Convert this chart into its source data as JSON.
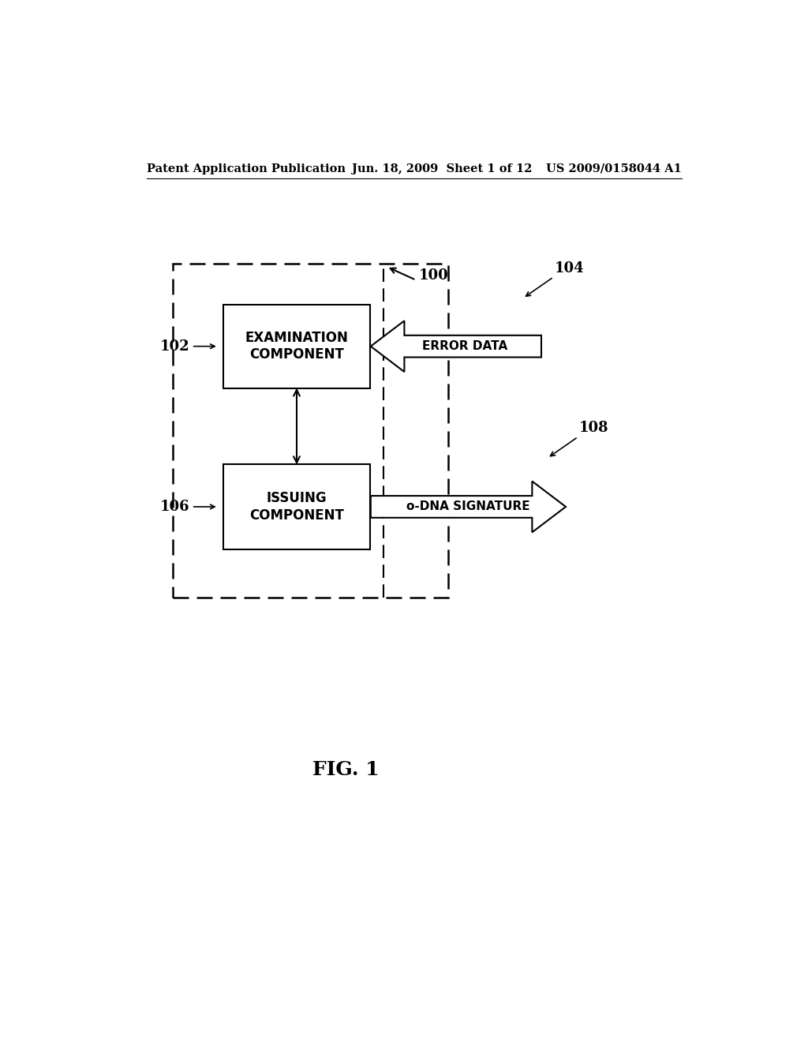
{
  "bg_color": "#ffffff",
  "header_left": "Patent Application Publication",
  "header_mid": "Jun. 18, 2009  Sheet 1 of 12",
  "header_right": "US 2009/0158044 A1",
  "fig_label": "FIG. 1",
  "label_100": "100",
  "label_102": "102",
  "label_104": "104",
  "label_106": "106",
  "label_108": "108",
  "exam_label1": "EXAMINATION",
  "exam_label2": "COMPONENT",
  "issue_label1": "ISSUING",
  "issue_label2": "COMPONENT",
  "error_label": "ERROR DATA",
  "odna_label": "o-DNA SIGNATURE"
}
